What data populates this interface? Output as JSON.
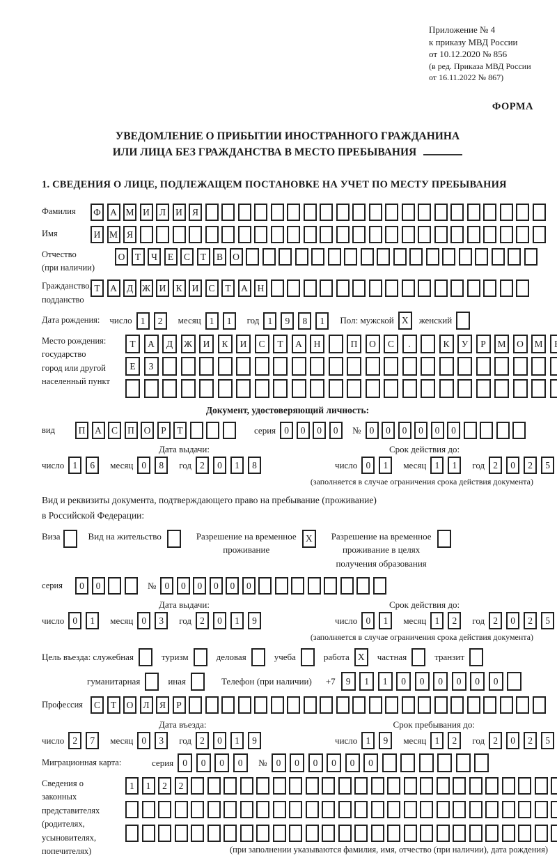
{
  "colors": {
    "ink": "#1b1b1b"
  },
  "header": {
    "line1": "Приложение № 4",
    "line2": "к приказу МВД России",
    "line3": "от 10.12.2020 № 856",
    "line4": "(в ред. Приказа МВД России",
    "line5": "от 16.11.2022 № 867)",
    "forma": "ФОРМА"
  },
  "title": {
    "line1": "УВЕДОМЛЕНИЕ О ПРИБЫТИИ ИНОСТРАННОГО ГРАЖДАНИНА",
    "line2": "ИЛИ ЛИЦА БЕЗ ГРАЖДАНСТВА В МЕСТО ПРЕБЫВАНИЯ"
  },
  "section": {
    "heading": "1. СВЕДЕНИЯ О ЛИЦЕ, ПОДЛЕЖАЩЕМ ПОСТАНОВКЕ НА УЧЕТ ПО МЕСТУ ПРЕБЫВАНИЯ"
  },
  "labels": {
    "surname": "Фамилия",
    "given_name": "Имя",
    "patronymic1": "Отчество",
    "patronymic2": "(при наличии)",
    "citizenship1": "Гражданство,",
    "citizenship2": "подданство",
    "dob": "Дата рождения:",
    "day": "число",
    "month": "месяц",
    "year": "год",
    "sex_male": "Пол: мужской",
    "sex_female": "женский",
    "birthplace1": "Место рождения:",
    "birthplace2": "государство",
    "birthplace3": "город или другой",
    "birthplace4": "населенный пункт",
    "doc_head": "Документ, удостоверяющий личность:",
    "vid": "вид",
    "seriya": "серия",
    "nom": "№",
    "issue_date": "Дата выдачи:",
    "expiry_date": "Срок действия до:",
    "expiry_note": "(заполняется в случае ограничения срока действия документа)",
    "permit_para1": "Вид и реквизиты документа, подтверждающего право на пребывание (проживание)",
    "permit_para2": "в Российской Федерации:",
    "visa": "Виза",
    "residence": "Вид на жительство",
    "rvp1": "Разрешение на временное",
    "rvp2": "проживание",
    "rvp_edu1": "Разрешение на временное",
    "rvp_edu2": "проживание в целях",
    "rvp_edu3": "получения образования",
    "purpose": "Цель въезда: служебная",
    "tourism": "туризм",
    "business": "деловая",
    "study": "учеба",
    "work": "работа",
    "private": "частная",
    "transit": "транзит",
    "humanitarian": "гуманитарная",
    "other": "иная",
    "phone": "Телефон (при наличии)",
    "plus7": "+7",
    "profession": "Профессия",
    "entry_date": "Дата въезда:",
    "stay_until": "Срок пребывания до:",
    "migration_card": "Миграционная карта:",
    "reps1": "Сведения о",
    "reps2": "законных",
    "reps3": "представителях",
    "reps4": "(родителях,",
    "reps5": "усыновителях,",
    "reps6": "попечителях)",
    "reps_note": "(при заполнении указываются фамилия, имя, отчество (при наличии), дата рождения)"
  },
  "cells": {
    "surname": {
      "text": "ФАМИЛИЯ",
      "len": 28
    },
    "given_name": {
      "text": "ИМЯ",
      "len": 28
    },
    "patronymic": {
      "text": "ОТЧЕСТВО",
      "len": 26
    },
    "citizenship": {
      "text": "ТАДЖИКИСТАН",
      "len": 27
    },
    "dob_day": {
      "text": "12",
      "len": 2
    },
    "dob_month": {
      "text": "11",
      "len": 2
    },
    "dob_year": {
      "text": "1981",
      "len": 4
    },
    "birth_row1": {
      "text": "ТАДЖИКИСТАН ПОС. КУРМОМБ",
      "len": 24
    },
    "birth_row2": {
      "text": "ЕЗ",
      "len": 24
    },
    "birth_row3": {
      "text": "",
      "len": 24
    },
    "doc_type": {
      "text": "ПАСПОРТ",
      "len": 10
    },
    "doc_series": {
      "text": "0000",
      "len": 4
    },
    "doc_number": {
      "text": "000000",
      "len": 10
    },
    "doc_issue_day": {
      "text": "16",
      "len": 2
    },
    "doc_issue_month": {
      "text": "08",
      "len": 2
    },
    "doc_issue_year": {
      "text": "2018",
      "len": 4
    },
    "doc_expiry_day": {
      "text": "01",
      "len": 2
    },
    "doc_expiry_month": {
      "text": "11",
      "len": 2
    },
    "doc_expiry_year": {
      "text": "2025",
      "len": 4
    },
    "permit_series": {
      "text": "00",
      "len": 4
    },
    "permit_number": {
      "text": "000000",
      "len": 14
    },
    "permit_issue_day": {
      "text": "01",
      "len": 2
    },
    "permit_issue_month": {
      "text": "03",
      "len": 2
    },
    "permit_issue_year": {
      "text": "2019",
      "len": 4
    },
    "permit_expiry_day": {
      "text": "01",
      "len": 2
    },
    "permit_expiry_month": {
      "text": "12",
      "len": 2
    },
    "permit_expiry_year": {
      "text": "2025",
      "len": 4
    },
    "phone_digits": {
      "text": "911000000",
      "len": 10
    },
    "profession": {
      "text": "СТОЛЯР",
      "len": 28
    },
    "entry_day": {
      "text": "27",
      "len": 2
    },
    "entry_month": {
      "text": "03",
      "len": 2
    },
    "entry_year": {
      "text": "2019",
      "len": 4
    },
    "stay_day": {
      "text": "19",
      "len": 2
    },
    "stay_month": {
      "text": "12",
      "len": 2
    },
    "stay_year": {
      "text": "2025",
      "len": 4
    },
    "mig_series": {
      "text": "0000",
      "len": 4
    },
    "mig_number": {
      "text": "000000",
      "len": 12
    },
    "reps_row1": {
      "text": "1122",
      "len": 28
    },
    "reps_row2": {
      "text": "",
      "len": 28
    },
    "reps_row3": {
      "text": "",
      "len": 28
    }
  },
  "checkboxes": {
    "male": {
      "text": "X",
      "len": 1
    },
    "female": {
      "text": "",
      "len": 1
    },
    "visa": {
      "text": "",
      "len": 1
    },
    "residence": {
      "text": "",
      "len": 1
    },
    "rvp": {
      "text": "X",
      "len": 1
    },
    "rvp_edu": {
      "text": "",
      "len": 1
    },
    "official": {
      "text": "",
      "len": 1
    },
    "tourism": {
      "text": "",
      "len": 1
    },
    "business": {
      "text": "",
      "len": 1
    },
    "study": {
      "text": "",
      "len": 1
    },
    "work": {
      "text": "X",
      "len": 1
    },
    "private": {
      "text": "",
      "len": 1
    },
    "transit": {
      "text": "",
      "len": 1
    },
    "humanitarian": {
      "text": "",
      "len": 1
    },
    "other": {
      "text": "",
      "len": 1
    }
  }
}
